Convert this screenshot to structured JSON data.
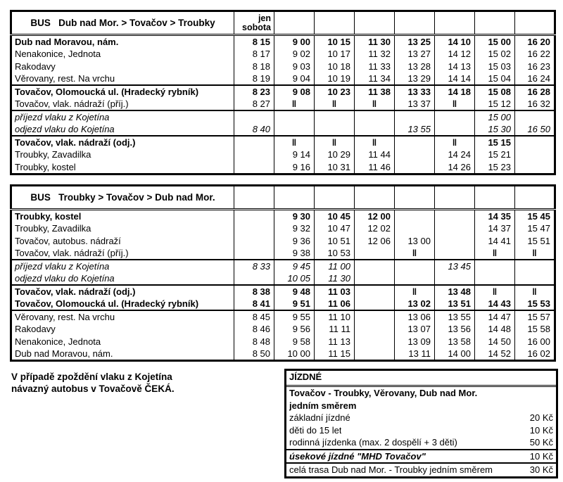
{
  "page": {
    "background": "#ffffff",
    "text_color": "#000000",
    "border_color": "#000000"
  },
  "no_stop_symbol": "‖",
  "table_outbound": {
    "title": "BUS   Dub nad Mor. > Tovačov > Troubky",
    "first_col_header": [
      "jen",
      "sobota"
    ],
    "num_time_cols": 8,
    "rows": [
      {
        "label": "Dub nad Moravou, nám.",
        "style": "bold",
        "group_start": false,
        "times": [
          "8 15",
          "9 00",
          "10 15",
          "11 30",
          "13 25",
          "14 10",
          "15 00",
          "16 20"
        ]
      },
      {
        "label": "Nenakonice, Jednota",
        "style": "normal",
        "group_start": false,
        "times": [
          "8 17",
          "9 02",
          "10 17",
          "11 32",
          "13 27",
          "14 12",
          "15 02",
          "16 22"
        ]
      },
      {
        "label": "Rakodavy",
        "style": "normal",
        "group_start": false,
        "times": [
          "8 18",
          "9 03",
          "10 18",
          "11 33",
          "13 28",
          "14 13",
          "15 03",
          "16 23"
        ]
      },
      {
        "label": "Věrovany, rest. Na vrchu",
        "style": "normal",
        "group_start": false,
        "times": [
          "8 19",
          "9 04",
          "10 19",
          "11 34",
          "13 29",
          "14 14",
          "15 04",
          "16 24"
        ]
      },
      {
        "label": "Tovačov, Olomoucká ul. (Hradecký rybník)",
        "style": "bold",
        "group_start": true,
        "times": [
          "8 23",
          "9 08",
          "10 23",
          "11 38",
          "13 33",
          "14 18",
          "15 08",
          "16 28"
        ]
      },
      {
        "label": "Tovačov, vlak. nádraží (příj.)",
        "style": "normal",
        "group_start": false,
        "times": [
          "8 27",
          "‖",
          "‖",
          "‖",
          "13 37",
          "‖",
          "15 12",
          "16 32"
        ]
      },
      {
        "label": "příjezd vlaku z Kojetína",
        "style": "italic",
        "group_start": true,
        "times": [
          "",
          "",
          "",
          "",
          "",
          "",
          "15 00",
          ""
        ]
      },
      {
        "label": "odjezd vlaku do Kojetína",
        "style": "italic",
        "group_start": false,
        "times": [
          "8 40",
          "",
          "",
          "",
          "13 55",
          "",
          "15 30",
          "16 50"
        ]
      },
      {
        "label": "Tovačov, vlak. nádraží (odj.)",
        "style": "bold",
        "group_start": true,
        "times": [
          "",
          "‖",
          "‖",
          "‖",
          "",
          "‖",
          "15 15",
          ""
        ]
      },
      {
        "label": "Troubky, Zavadilka",
        "style": "normal",
        "group_start": false,
        "times": [
          "",
          "9 14",
          "10 29",
          "11 44",
          "",
          "14 24",
          "15 21",
          ""
        ]
      },
      {
        "label": "Troubky, kostel",
        "style": "normal",
        "group_start": false,
        "times": [
          "",
          "9 16",
          "10 31",
          "11 46",
          "",
          "14 26",
          "15 23",
          ""
        ]
      }
    ]
  },
  "table_return": {
    "title": "BUS   Troubky > Tovačov > Dub nad Mor.",
    "first_col_header": [
      "",
      ""
    ],
    "num_time_cols": 8,
    "rows": [
      {
        "label": "Troubky, kostel",
        "style": "bold",
        "group_start": false,
        "times": [
          "",
          "9 30",
          "10 45",
          "12 00",
          "",
          "",
          "14 35",
          "15 45"
        ]
      },
      {
        "label": "Troubky, Zavadilka",
        "style": "normal",
        "group_start": false,
        "times": [
          "",
          "9 32",
          "10 47",
          "12 02",
          "",
          "",
          "14 37",
          "15 47"
        ]
      },
      {
        "label": "Tovačov, autobus. nádraží",
        "style": "normal",
        "group_start": false,
        "times": [
          "",
          "9 36",
          "10 51",
          "12 06",
          "13 00",
          "",
          "14 41",
          "15 51"
        ]
      },
      {
        "label": "Tovačov, vlak. nádraží (příj.)",
        "style": "normal",
        "group_start": false,
        "times": [
          "",
          "9 38",
          "10 53",
          "",
          "‖",
          "",
          "‖",
          "‖"
        ]
      },
      {
        "label": "příjezd vlaku z Kojetína",
        "style": "italic",
        "group_start": true,
        "times": [
          "8 33",
          "9 45",
          "11 00",
          "",
          "",
          "13 45",
          "",
          ""
        ]
      },
      {
        "label": "odjezd vlaku do Kojetína",
        "style": "italic",
        "group_start": false,
        "times": [
          "",
          "10 05",
          "11 30",
          "",
          "",
          "",
          "",
          ""
        ]
      },
      {
        "label": "Tovačov, vlak. nádraží (odj.)",
        "style": "bold",
        "group_start": true,
        "times": [
          "8 38",
          "9 48",
          "11 03",
          "",
          "‖",
          "13 48",
          "‖",
          "‖"
        ]
      },
      {
        "label": "Tovačov, Olomoucká ul. (Hradecký rybník)",
        "style": "bold",
        "group_start": false,
        "times": [
          "8 41",
          "9 51",
          "11 06",
          "",
          "13 02",
          "13 51",
          "14 43",
          "15 53"
        ]
      },
      {
        "label": "Věrovany, rest. Na vrchu",
        "style": "normal",
        "group_start": true,
        "times": [
          "8 45",
          "9 55",
          "11 10",
          "",
          "13 06",
          "13 55",
          "14 47",
          "15 57"
        ]
      },
      {
        "label": "Rakodavy",
        "style": "normal",
        "group_start": false,
        "times": [
          "8 46",
          "9 56",
          "11 11",
          "",
          "13 07",
          "13 56",
          "14 48",
          "15 58"
        ]
      },
      {
        "label": "Nenakonice, Jednota",
        "style": "normal",
        "group_start": false,
        "times": [
          "8 48",
          "9 58",
          "11 13",
          "",
          "13 09",
          "13 58",
          "14 50",
          "16 00"
        ]
      },
      {
        "label": "Dub nad Moravou, nám.",
        "style": "normal",
        "group_start": false,
        "times": [
          "8 50",
          "10 00",
          "11 15",
          "",
          "13 11",
          "14 00",
          "14 52",
          "16 02"
        ]
      }
    ]
  },
  "note": {
    "line1": "V případě zpoždění vlaku z Kojetína",
    "line2": "návazný autobus v Tovačově ČEKÁ."
  },
  "fares": {
    "title": "JÍZDNÉ",
    "rows": [
      {
        "label": "Tovačov - Troubky, Věrovany, Dub nad Mor.",
        "price": "",
        "style": "bold",
        "group_start": false
      },
      {
        "label": "jedním směrem",
        "price": "",
        "style": "bold",
        "group_start": false
      },
      {
        "label": "základní jízdné",
        "price": "20 Kč",
        "style": "normal",
        "group_start": false
      },
      {
        "label": "děti do 15 let",
        "price": "10 Kč",
        "style": "normal",
        "group_start": false
      },
      {
        "label": "rodinná jízdenka (max. 2 dospělí + 3 děti)",
        "price": "50 Kč",
        "style": "normal",
        "group_start": false
      },
      {
        "label": "úsekové jízdné \"MHD Tovačov\"",
        "price": "10 Kč",
        "style": "bold-italic",
        "group_start": true
      },
      {
        "label": "celá trasa Dub nad Mor. - Troubky jedním směrem",
        "price": "30 Kč",
        "style": "normal",
        "group_start": true
      }
    ]
  }
}
